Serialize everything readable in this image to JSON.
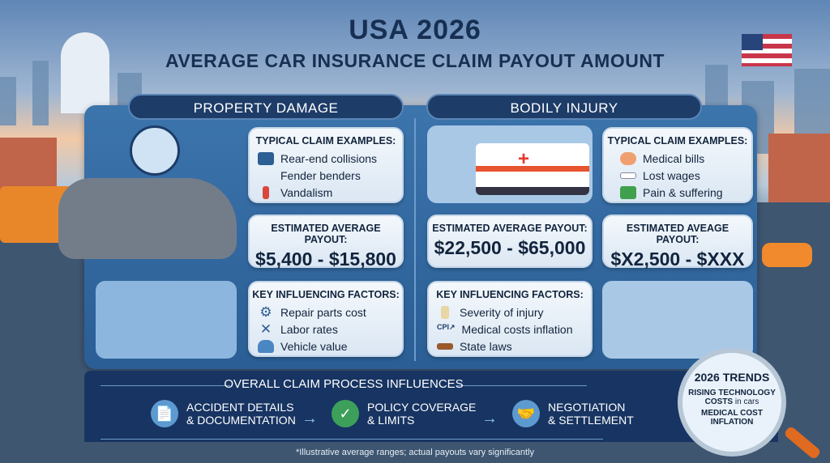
{
  "title": "USA 2026",
  "subtitle": "AVERAGE CAR INSURANCE CLAIM PAYOUT AMOUNT",
  "property": {
    "header": "PROPERTY DAMAGE",
    "examples_title": "TYPICAL CLAIM EXAMPLES:",
    "examples": [
      {
        "icon": "car-crash-icon",
        "label": "Rear-end collisions"
      },
      {
        "icon": "none",
        "label": "Fender benders"
      },
      {
        "icon": "spray-can-icon",
        "label": "Vandalism"
      }
    ],
    "payout_title": "ESTIMATED AVERAGE PAYOUT:",
    "payout": "$5,400 - $15,800",
    "factors_title": "KEY INFLUENCING FACTORS:",
    "factors": [
      {
        "icon": "gear-icon",
        "label": "Repair parts cost"
      },
      {
        "icon": "wrench-icon",
        "label": "Labor rates"
      },
      {
        "icon": "car-icon",
        "label": "Vehicle value"
      }
    ]
  },
  "bodily": {
    "header": "BODILY INJURY",
    "examples_title": "TYPICAL CLAIM EXAMPLES:",
    "examples": [
      {
        "icon": "bandage-icon",
        "label": "Medical bills"
      },
      {
        "icon": "bone-icon",
        "label": "Lost wages"
      },
      {
        "icon": "money-icon",
        "label": "Pain & suffering"
      }
    ],
    "payout_title": "ESTIMATED AVERAGE PAYOUT:",
    "payout": "$22,500 - $65,000",
    "payout2_title": "ESTIMATED AVEAGE PAYOUT:",
    "payout2": "$X2,500 - $XXX",
    "factors_title": "KEY INFLUENCING FACTORS:",
    "factors": [
      {
        "icon": "spine-icon",
        "label": "Severity of injury"
      },
      {
        "icon": "cpi-icon",
        "icon_text": "CPI↗",
        "label": "Medical costs inflation"
      },
      {
        "icon": "gavel-icon",
        "label": "State laws"
      }
    ]
  },
  "process": {
    "title": "OVERALL CLAIM PROCESS INFLUENCES",
    "steps": [
      {
        "icon": "document-icon",
        "line1": "ACCIDENT DETAILS",
        "line2": "& DOCUMENTATION"
      },
      {
        "icon": "shield-check-icon",
        "line1": "POLICY COVERAGE",
        "line2": "& LIMITS"
      },
      {
        "icon": "handshake-icon",
        "line1": "NEGOTIATION",
        "line2": "& SETTLEMENT"
      }
    ]
  },
  "trends": {
    "title": "2026 TRENDS",
    "line1": "RISING TECHNOLOGY",
    "line2": "COSTS",
    "line2b": "in cars",
    "line3": "MEDICAL COST",
    "line4": "INFLATION"
  },
  "footnote": "*Illustrative average ranges; actual payouts vary significantly",
  "colors": {
    "navy": "#172f52",
    "panel": "#3c74ac",
    "bottom": "#173462"
  }
}
